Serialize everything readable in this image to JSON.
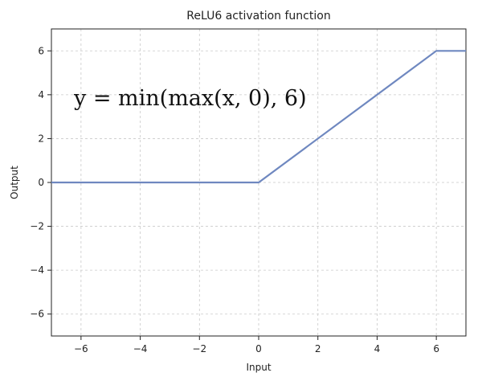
{
  "chart_data": {
    "type": "line",
    "title": "ReLU6 activation function",
    "xlabel": "Input",
    "ylabel": "Output",
    "xlim": [
      -7,
      7
    ],
    "ylim": [
      -7,
      7
    ],
    "xticks": [
      -6,
      -4,
      -2,
      0,
      2,
      4,
      6
    ],
    "yticks": [
      -6,
      -4,
      -2,
      0,
      2,
      4,
      6
    ],
    "grid": true,
    "annotation": "y = min(max(x, 0), 6)",
    "series": [
      {
        "name": "ReLU6",
        "color": "#6f88c0",
        "x": [
          -7,
          0,
          6,
          7
        ],
        "y": [
          0,
          0,
          6,
          6
        ]
      }
    ]
  }
}
